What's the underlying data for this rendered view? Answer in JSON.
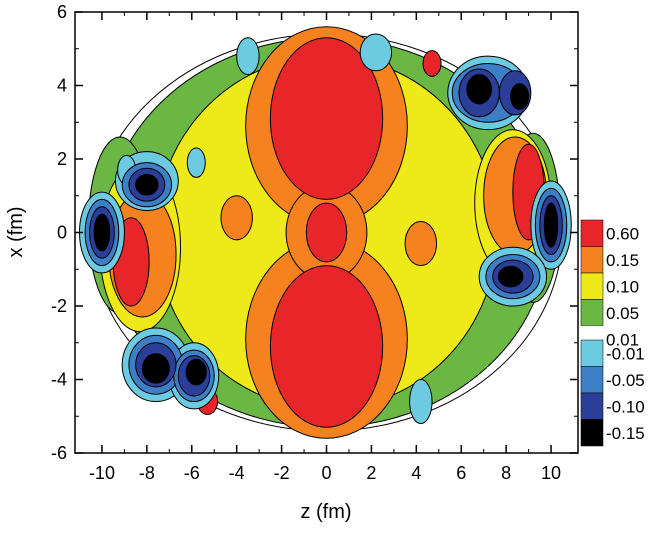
{
  "chart_data": {
    "type": "heatmap",
    "title": "",
    "xlabel": "z (fm)",
    "ylabel": "x (fm)",
    "xlim": [
      -11.2,
      11.2
    ],
    "ylim": [
      -6,
      6
    ],
    "x_ticks": [
      -10,
      -8,
      -6,
      -4,
      -2,
      0,
      2,
      4,
      6,
      8,
      10
    ],
    "x_tick_labels": [
      "-10",
      "-8",
      "-6",
      "-4",
      "-2",
      "0",
      "2",
      "4",
      "6",
      "8",
      "10"
    ],
    "y_ticks": [
      -6,
      -4,
      -2,
      0,
      2,
      4,
      6
    ],
    "y_tick_labels": [
      "-6",
      "-4",
      "-2",
      "0",
      "2",
      "4",
      "6"
    ],
    "grid": false,
    "legend_position": "right",
    "contour_levels": [
      {
        "label": "0.60",
        "color": "#e8262a"
      },
      {
        "label": "0.15",
        "color": "#f5821f"
      },
      {
        "label": "0.10",
        "color": "#eeea1a"
      },
      {
        "label": "0.05",
        "color": "#6ab743"
      },
      {
        "label": "0.01",
        "color": "#ffffff"
      },
      {
        "label": "-0.01",
        "color": "#6ccbe0"
      },
      {
        "label": "-0.05",
        "color": "#3c7fc6"
      },
      {
        "label": "-0.10",
        "color": "#2c3f98"
      },
      {
        "label": "-0.15",
        "color": "#000000"
      }
    ],
    "regions": [
      {
        "level": "0.01",
        "kind": "ellipse",
        "cx": 0,
        "cy": 0,
        "rx": 10.5,
        "ry": 5.4
      },
      {
        "level": "0.05",
        "kind": "ellipse",
        "cx": 0,
        "cy": 0,
        "rx": 9.9,
        "ry": 5.3
      },
      {
        "level": "0.05",
        "kind": "ellipse",
        "cx": -9.2,
        "cy": 0.2,
        "rx": 1.4,
        "ry": 2.4
      },
      {
        "level": "0.05",
        "kind": "ellipse",
        "cx": 9.2,
        "cy": 0.4,
        "rx": 1.2,
        "ry": 2.3
      },
      {
        "level": "0.10",
        "kind": "ellipse",
        "cx": 0,
        "cy": 0,
        "rx": 7.6,
        "ry": 4.8
      },
      {
        "level": "0.10",
        "kind": "ellipse",
        "cx": -8.3,
        "cy": -0.4,
        "rx": 1.8,
        "ry": 2.3
      },
      {
        "level": "0.10",
        "kind": "ellipse",
        "cx": 8.3,
        "cy": 0.8,
        "rx": 1.7,
        "ry": 2.0
      },
      {
        "level": "0.15",
        "kind": "ellipse",
        "cx": 0,
        "cy": 2.9,
        "rx": 3.6,
        "ry": 2.7
      },
      {
        "level": "0.15",
        "kind": "ellipse",
        "cx": 0,
        "cy": -2.9,
        "rx": 3.6,
        "ry": 2.7
      },
      {
        "level": "0.15",
        "kind": "ellipse",
        "cx": 0,
        "cy": 0,
        "rx": 1.8,
        "ry": 1.3
      },
      {
        "level": "0.15",
        "kind": "ellipse",
        "cx": -8.2,
        "cy": -0.6,
        "rx": 1.5,
        "ry": 1.7
      },
      {
        "level": "0.15",
        "kind": "ellipse",
        "cx": 8.4,
        "cy": 1.0,
        "rx": 1.4,
        "ry": 1.6
      },
      {
        "level": "0.15",
        "kind": "ellipse",
        "cx": -4.0,
        "cy": 0.4,
        "rx": 0.7,
        "ry": 0.6
      },
      {
        "level": "0.15",
        "kind": "ellipse",
        "cx": 4.2,
        "cy": -0.3,
        "rx": 0.7,
        "ry": 0.6
      },
      {
        "level": "0.60",
        "kind": "ellipse",
        "cx": 0,
        "cy": 3.1,
        "rx": 2.5,
        "ry": 2.2
      },
      {
        "level": "0.60",
        "kind": "ellipse",
        "cx": 0,
        "cy": -3.1,
        "rx": 2.5,
        "ry": 2.2
      },
      {
        "level": "0.60",
        "kind": "ellipse",
        "cx": 0,
        "cy": 0,
        "rx": 0.9,
        "ry": 0.8
      },
      {
        "level": "0.60",
        "kind": "ellipse",
        "cx": -8.7,
        "cy": -0.8,
        "rx": 0.8,
        "ry": 1.2
      },
      {
        "level": "0.60",
        "kind": "ellipse",
        "cx": 9.0,
        "cy": 1.1,
        "rx": 0.7,
        "ry": 1.3
      },
      {
        "level": "0.60",
        "kind": "ellipse",
        "cx": -5.3,
        "cy": -4.6,
        "rx": 0.45,
        "ry": 0.35
      },
      {
        "level": "0.60",
        "kind": "ellipse",
        "cx": 4.7,
        "cy": 4.6,
        "rx": 0.4,
        "ry": 0.35
      },
      {
        "level": "-0.01",
        "kind": "ellipse",
        "cx": -10.0,
        "cy": 0.0,
        "rx": 1.0,
        "ry": 1.1
      },
      {
        "level": "-0.01",
        "kind": "ellipse",
        "cx": -8.0,
        "cy": 1.4,
        "rx": 1.4,
        "ry": 0.8
      },
      {
        "level": "-0.01",
        "kind": "ellipse",
        "cx": -7.6,
        "cy": -3.6,
        "rx": 1.5,
        "ry": 1.0
      },
      {
        "level": "-0.01",
        "kind": "ellipse",
        "cx": -5.9,
        "cy": -3.9,
        "rx": 1.1,
        "ry": 0.9
      },
      {
        "level": "-0.01",
        "kind": "ellipse",
        "cx": 7.2,
        "cy": 3.8,
        "rx": 1.8,
        "ry": 1.0
      },
      {
        "level": "-0.01",
        "kind": "ellipse",
        "cx": 10.0,
        "cy": 0.2,
        "rx": 0.9,
        "ry": 1.2
      },
      {
        "level": "-0.01",
        "kind": "ellipse",
        "cx": 8.3,
        "cy": -1.2,
        "rx": 1.5,
        "ry": 0.8
      },
      {
        "level": "-0.01",
        "kind": "ellipse",
        "cx": 2.2,
        "cy": 4.9,
        "rx": 0.7,
        "ry": 0.5
      },
      {
        "level": "-0.01",
        "kind": "ellipse",
        "cx": -3.5,
        "cy": 4.8,
        "rx": 0.5,
        "ry": 0.5
      },
      {
        "level": "-0.01",
        "kind": "ellipse",
        "cx": 4.2,
        "cy": -4.6,
        "rx": 0.5,
        "ry": 0.6
      },
      {
        "level": "-0.01",
        "kind": "ellipse",
        "cx": -8.9,
        "cy": 1.7,
        "rx": 0.4,
        "ry": 0.4
      },
      {
        "level": "-0.01",
        "kind": "ellipse",
        "cx": -5.8,
        "cy": 1.9,
        "rx": 0.4,
        "ry": 0.4
      },
      {
        "level": "-0.05",
        "kind": "ellipse",
        "cx": -10.0,
        "cy": 0.0,
        "rx": 0.75,
        "ry": 0.9
      },
      {
        "level": "-0.05",
        "kind": "ellipse",
        "cx": -8.0,
        "cy": 1.3,
        "rx": 1.1,
        "ry": 0.6
      },
      {
        "level": "-0.05",
        "kind": "ellipse",
        "cx": -7.6,
        "cy": -3.6,
        "rx": 1.2,
        "ry": 0.8
      },
      {
        "level": "-0.05",
        "kind": "ellipse",
        "cx": -5.9,
        "cy": -3.9,
        "rx": 0.9,
        "ry": 0.7
      },
      {
        "level": "-0.05",
        "kind": "ellipse",
        "cx": 7.2,
        "cy": 3.8,
        "rx": 1.6,
        "ry": 0.8
      },
      {
        "level": "-0.05",
        "kind": "ellipse",
        "cx": 10.0,
        "cy": 0.2,
        "rx": 0.7,
        "ry": 1.0
      },
      {
        "level": "-0.05",
        "kind": "ellipse",
        "cx": 8.3,
        "cy": -1.2,
        "rx": 1.2,
        "ry": 0.6
      },
      {
        "level": "-0.10",
        "kind": "ellipse",
        "cx": -10.0,
        "cy": 0.0,
        "rx": 0.55,
        "ry": 0.7
      },
      {
        "level": "-0.10",
        "kind": "ellipse",
        "cx": -8.0,
        "cy": 1.3,
        "rx": 0.8,
        "ry": 0.45
      },
      {
        "level": "-0.10",
        "kind": "ellipse",
        "cx": -7.6,
        "cy": -3.6,
        "rx": 0.9,
        "ry": 0.6
      },
      {
        "level": "-0.10",
        "kind": "ellipse",
        "cx": -5.9,
        "cy": -3.9,
        "rx": 0.7,
        "ry": 0.55
      },
      {
        "level": "-0.10",
        "kind": "ellipse",
        "cx": 6.8,
        "cy": 3.8,
        "rx": 0.9,
        "ry": 0.65
      },
      {
        "level": "-0.10",
        "kind": "ellipse",
        "cx": 8.4,
        "cy": 3.8,
        "rx": 0.7,
        "ry": 0.6
      },
      {
        "level": "-0.10",
        "kind": "ellipse",
        "cx": 10.0,
        "cy": 0.2,
        "rx": 0.5,
        "ry": 0.8
      },
      {
        "level": "-0.10",
        "kind": "ellipse",
        "cx": 8.3,
        "cy": -1.2,
        "rx": 0.9,
        "ry": 0.45
      },
      {
        "level": "-0.15",
        "kind": "ellipse",
        "cx": -10.0,
        "cy": 0.0,
        "rx": 0.35,
        "ry": 0.5
      },
      {
        "level": "-0.15",
        "kind": "ellipse",
        "cx": -8.0,
        "cy": 1.3,
        "rx": 0.5,
        "ry": 0.28
      },
      {
        "level": "-0.15",
        "kind": "ellipse",
        "cx": -7.6,
        "cy": -3.7,
        "rx": 0.6,
        "ry": 0.4
      },
      {
        "level": "-0.15",
        "kind": "ellipse",
        "cx": -5.8,
        "cy": -3.8,
        "rx": 0.45,
        "ry": 0.35
      },
      {
        "level": "-0.15",
        "kind": "ellipse",
        "cx": 6.8,
        "cy": 3.9,
        "rx": 0.55,
        "ry": 0.4
      },
      {
        "level": "-0.15",
        "kind": "ellipse",
        "cx": 8.6,
        "cy": 3.7,
        "rx": 0.4,
        "ry": 0.35
      },
      {
        "level": "-0.15",
        "kind": "ellipse",
        "cx": 10.0,
        "cy": 0.2,
        "rx": 0.3,
        "ry": 0.6
      },
      {
        "level": "-0.15",
        "kind": "ellipse",
        "cx": 8.2,
        "cy": -1.2,
        "rx": 0.55,
        "ry": 0.28
      }
    ]
  }
}
